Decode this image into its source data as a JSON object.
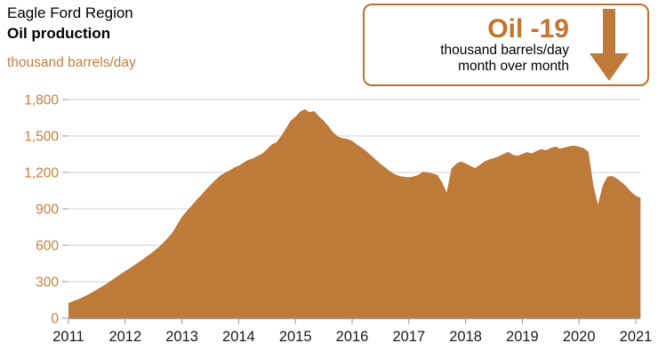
{
  "header": {
    "region": "Eagle Ford Region",
    "metric": "Oil production",
    "units": "thousand barrels/day"
  },
  "callout": {
    "headline": "Oil -19",
    "line1": "thousand barrels/day",
    "line2": "month over month",
    "arrow_icon": "down-arrow",
    "accent_color": "#c4742c",
    "border_color": "#bd6f2d",
    "arrow_color": "#bd7a39"
  },
  "colors": {
    "area_fill": "#bd7a39",
    "axis_text_orange": "#c57e3e",
    "axis_text_black": "#1a1a1a",
    "gridline": "#d9d9d9",
    "axis_line": "#9b9b9b"
  },
  "chart_data": {
    "type": "area",
    "title": "Eagle Ford Region Oil production",
    "ylabel": "thousand barrels/day",
    "xlabel": "",
    "grid": true,
    "legend": "none",
    "start_month": "2011-01",
    "end_month": "2021-02",
    "x_tick_labels": [
      "2011",
      "2012",
      "2013",
      "2014",
      "2015",
      "2016",
      "2017",
      "2018",
      "2019",
      "2020",
      "2021"
    ],
    "y_ticks": [
      0,
      300,
      600,
      900,
      1200,
      1500,
      1800
    ],
    "y_tick_labels": [
      "0",
      "300",
      "600",
      "900",
      "1,200",
      "1,500",
      "1,800"
    ],
    "ylim": [
      0,
      1800
    ],
    "month_over_month_change": -19,
    "values": [
      125,
      140,
      155,
      172,
      190,
      212,
      235,
      258,
      282,
      308,
      335,
      362,
      388,
      412,
      438,
      465,
      492,
      520,
      550,
      582,
      618,
      660,
      705,
      770,
      835,
      880,
      925,
      970,
      1010,
      1055,
      1095,
      1135,
      1170,
      1195,
      1215,
      1238,
      1255,
      1280,
      1302,
      1315,
      1335,
      1355,
      1392,
      1430,
      1448,
      1500,
      1562,
      1625,
      1658,
      1700,
      1720,
      1695,
      1705,
      1660,
      1625,
      1580,
      1530,
      1495,
      1482,
      1475,
      1460,
      1430,
      1405,
      1375,
      1340,
      1305,
      1270,
      1240,
      1210,
      1185,
      1170,
      1163,
      1160,
      1166,
      1180,
      1205,
      1200,
      1192,
      1180,
      1120,
      1035,
      1230,
      1270,
      1290,
      1275,
      1255,
      1235,
      1262,
      1290,
      1307,
      1318,
      1332,
      1352,
      1368,
      1345,
      1336,
      1352,
      1366,
      1356,
      1376,
      1392,
      1382,
      1400,
      1412,
      1396,
      1406,
      1416,
      1420,
      1412,
      1400,
      1370,
      1100,
      935,
      1090,
      1165,
      1170,
      1150,
      1120,
      1085,
      1040,
      1009,
      990
    ]
  }
}
